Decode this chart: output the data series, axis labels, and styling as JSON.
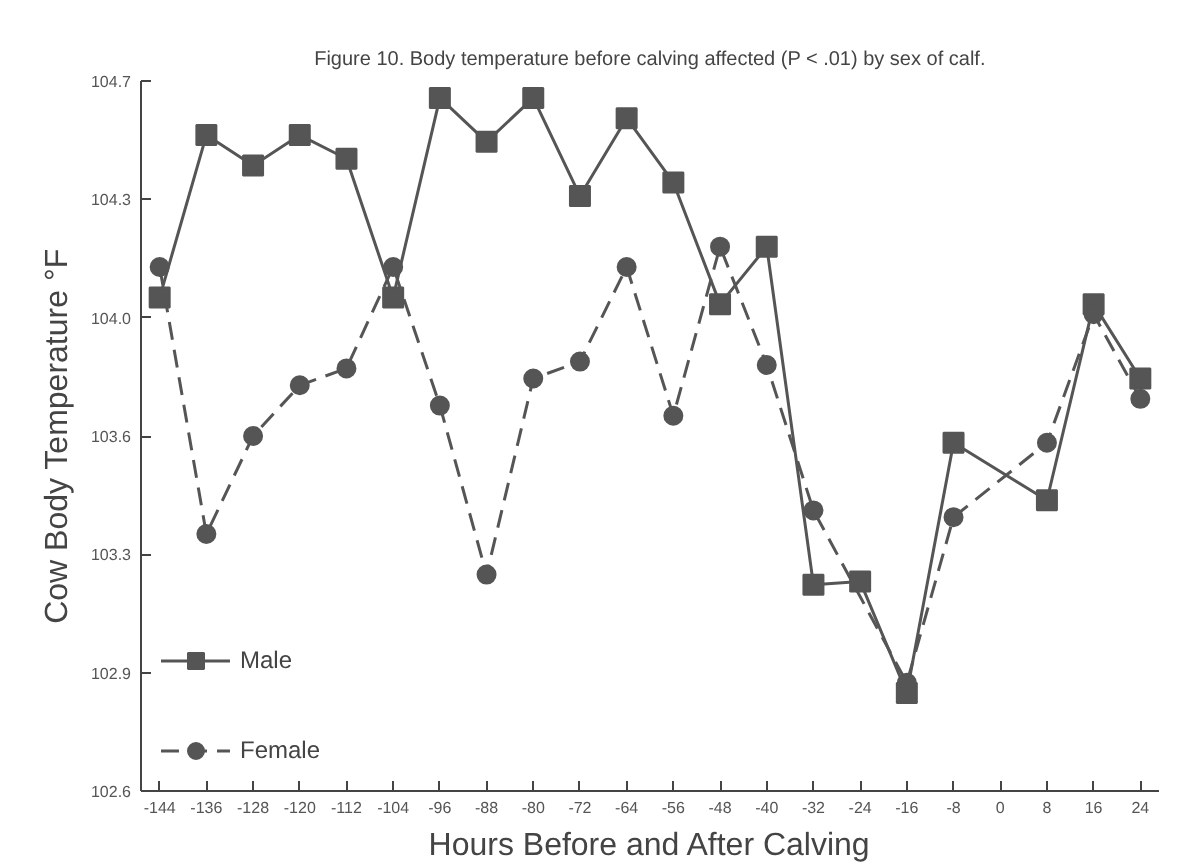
{
  "chart_data": {
    "type": "line",
    "title": "Figure 10. Body temperature before calving affected (P < .01) by sex of calf.",
    "xlabel": "Hours Before and After Calving",
    "ylabel": "Cow Body Temperature °F",
    "categories": [
      "-144",
      "-136",
      "-128",
      "-120",
      "-112",
      "-104",
      "-96",
      "-88",
      "-80",
      "-72",
      "-64",
      "-56",
      "-48",
      "-40",
      "-32",
      "-24",
      "-16",
      "-8",
      "0",
      "8",
      "16",
      "24"
    ],
    "ylim": [
      102.6,
      104.7
    ],
    "yticks": [
      {
        "value": 102.6,
        "label": "102.6"
      },
      {
        "value": 102.95,
        "label": "102.9"
      },
      {
        "value": 103.3,
        "label": "103.3"
      },
      {
        "value": 103.65,
        "label": "103.6"
      },
      {
        "value": 104.0,
        "label": "104.0"
      },
      {
        "value": 104.35,
        "label": "104.3"
      },
      {
        "value": 104.7,
        "label": "104.7"
      }
    ],
    "series": [
      {
        "name": "Male",
        "color": "#555555",
        "marker": "square",
        "line_style": "solid",
        "values": [
          104.06,
          104.54,
          104.45,
          104.54,
          104.47,
          104.06,
          104.65,
          104.52,
          104.65,
          104.36,
          104.59,
          104.4,
          104.04,
          104.21,
          103.21,
          103.22,
          102.89,
          103.63,
          null,
          103.46,
          104.04,
          103.82
        ]
      },
      {
        "name": "Female",
        "color": "#555555",
        "marker": "circle",
        "line_style": "dashed",
        "values": [
          104.15,
          103.36,
          103.65,
          103.8,
          103.85,
          104.15,
          103.74,
          103.24,
          103.82,
          103.87,
          104.15,
          103.71,
          104.21,
          103.86,
          103.43,
          null,
          102.92,
          103.41,
          null,
          103.63,
          104.01,
          103.76
        ]
      }
    ],
    "legend": "bottom left",
    "grid": false
  }
}
